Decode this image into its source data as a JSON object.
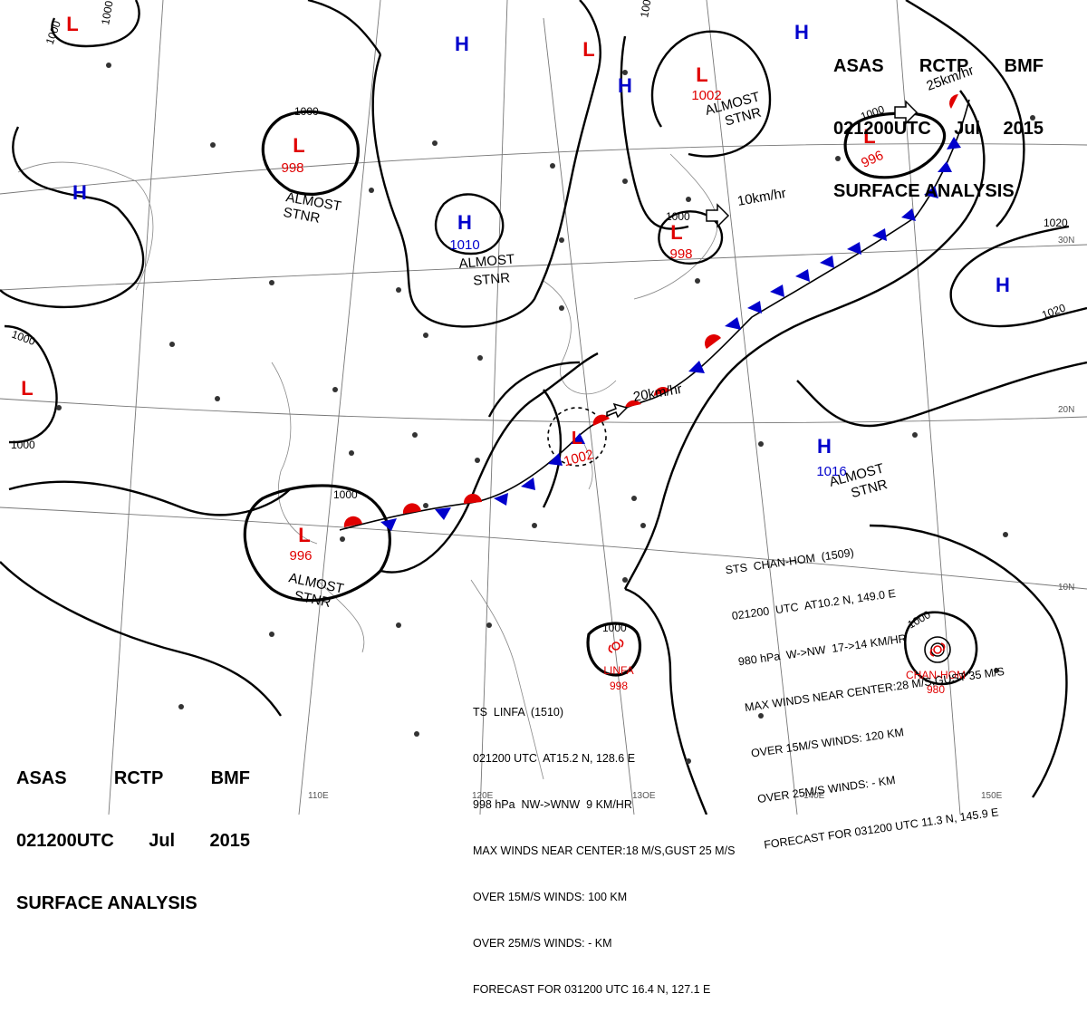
{
  "header_top_right": {
    "agency": [
      "ASAS",
      "RCTP",
      "BMF"
    ],
    "time": [
      "021200UTC",
      "Jul",
      "2015"
    ],
    "title": "SURFACE ANALYSIS"
  },
  "header_bottom_left": {
    "agency": [
      "ASAS",
      "RCTP",
      "BMF"
    ],
    "time": [
      "021200UTC",
      "Jul",
      "2015"
    ],
    "title": "SURFACE ANALYSIS"
  },
  "pressure_systems": [
    {
      "id": "L-nw",
      "type": "L",
      "value": ""
    },
    {
      "id": "L-998-w",
      "type": "L",
      "value": "998"
    },
    {
      "id": "H-w",
      "type": "H",
      "value": ""
    },
    {
      "id": "H-n1",
      "type": "H",
      "value": ""
    },
    {
      "id": "H-1010",
      "type": "H",
      "value": "1010"
    },
    {
      "id": "L-n",
      "type": "L",
      "value": ""
    },
    {
      "id": "H-n2",
      "type": "H",
      "value": ""
    },
    {
      "id": "L-1002-n",
      "type": "L",
      "value": "1002"
    },
    {
      "id": "H-ne",
      "type": "H",
      "value": ""
    },
    {
      "id": "L-996-ne",
      "type": "L",
      "value": "996"
    },
    {
      "id": "L-998-c",
      "type": "L",
      "value": "998"
    },
    {
      "id": "L-sw-left",
      "type": "L",
      "value": ""
    },
    {
      "id": "L-996-sw",
      "type": "L",
      "value": "996"
    },
    {
      "id": "L-1002-c",
      "type": "L",
      "value": "1002"
    },
    {
      "id": "H-1016",
      "type": "H",
      "value": "1016"
    },
    {
      "id": "H-e",
      "type": "H",
      "value": ""
    }
  ],
  "isobar_labels": [
    "1000",
    "1000",
    "1000",
    "1000",
    "1000",
    "1000",
    "1000",
    "1000",
    "1000",
    "1020",
    "1020",
    "1000",
    "1000"
  ],
  "annotations": {
    "almost_stnr": [
      "ALMOST",
      "STNR"
    ],
    "speeds": [
      "25km/hr",
      "10km/hr",
      "20km/hr"
    ]
  },
  "storms": {
    "linfa": {
      "name": "LINFA",
      "pressure": "998"
    },
    "chanhom": {
      "name": "CHAN-HOM",
      "pressure": "980"
    }
  },
  "info_chanhom": [
    "STS  CHAN-HOM  (1509)",
    "021200  UTC  AT10.2 N, 149.0 E",
    "980 hPa  W->NW  17->14 KM/HR",
    "MAX WINDS NEAR CENTER:28 M/S,GUST 35 M/S",
    "OVER 15M/S WINDS: 120 KM",
    "OVER 25M/S WINDS: - KM",
    "FORECAST FOR 031200 UTC 11.3 N, 145.9 E"
  ],
  "info_linfa": [
    "TS  LINFA  (1510)",
    "021200 UTC  AT15.2 N, 128.6 E",
    "998 hPa  NW->WNW  9 KM/HR",
    "MAX WINDS NEAR CENTER:18 M/S,GUST 25 M/S",
    "OVER 15M/S WINDS: 100 KM",
    "OVER 25M/S WINDS: - KM",
    "FORECAST FOR 031200 UTC 16.4 N, 127.1 E"
  ],
  "grid_labels": {
    "lat": [
      "30N",
      "20N",
      "10N"
    ],
    "lon": [
      "110E",
      "120E",
      "13OE",
      "140E",
      "150E"
    ]
  },
  "colors": {
    "low": "#e00000",
    "high": "#0000cc",
    "isobar": "#000000",
    "grid": "#666666",
    "warm_front": "#e00000",
    "cold_front": "#0000cc"
  }
}
